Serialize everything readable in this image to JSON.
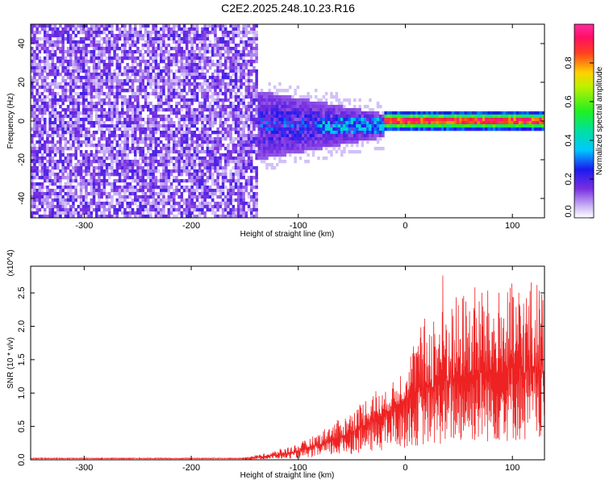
{
  "title": "C2E2.2025.248.10.23.R16",
  "chart_data": [
    {
      "type": "heatmap",
      "xlabel": "Height of straight line (km)",
      "ylabel": "Frequency (Hz)",
      "xlim": [
        -350,
        130
      ],
      "ylim": [
        -50,
        50
      ],
      "xticks": [
        "-300",
        "-200",
        "-100",
        "0",
        "100"
      ],
      "xtick_values": [
        -300,
        -200,
        -100,
        0,
        100
      ],
      "yticks": [
        "-40",
        "-20",
        "0",
        "20",
        "40"
      ],
      "ytick_values": [
        -40,
        -20,
        0,
        20,
        40
      ],
      "colorbar_label": "Normalized spectral amplitude",
      "colorbar_ticks": [
        "0.0",
        "0.2",
        "0.4",
        "0.6",
        "0.8"
      ],
      "colorbar_tick_values": [
        0.0,
        0.2,
        0.4,
        0.6,
        0.8
      ],
      "colorbar_range": [
        0,
        1
      ],
      "description_regions": [
        {
          "x_range": [
            -350,
            -140
          ],
          "freq_range": [
            -50,
            50
          ],
          "amplitude": "low, noise (violet)"
        },
        {
          "x_range": [
            -140,
            -20
          ],
          "freq_range": [
            -15,
            10
          ],
          "amplitude": "0.1-0.4 (blue/cyan/green)"
        },
        {
          "x_range": [
            -20,
            130
          ],
          "freq_range": [
            -2,
            4
          ],
          "amplitude": "0.5-1.0 narrow band near 1 Hz"
        }
      ]
    },
    {
      "type": "line",
      "xlabel": "Height of straight line (km)",
      "ylabel": "SNR (10 * v/v)",
      "y_scale_label": "(x10^4)",
      "xlim": [
        -350,
        130
      ],
      "ylim": [
        0,
        2.9
      ],
      "xticks": [
        "-300",
        "-200",
        "-100",
        "0",
        "100"
      ],
      "xtick_values": [
        -300,
        -200,
        -100,
        0,
        100
      ],
      "yticks": [
        "0.0",
        "0.5",
        "1.0",
        "1.5",
        "2.0",
        "2.5"
      ],
      "ytick_values": [
        0.0,
        0.5,
        1.0,
        1.5,
        2.0,
        2.5
      ],
      "color": "#ee2222",
      "series": [
        {
          "name": "SNR",
          "x": [
            -350,
            -300,
            -250,
            -200,
            -150,
            -130,
            -110,
            -100,
            -90,
            -80,
            -70,
            -60,
            -50,
            -40,
            -30,
            -20,
            -10,
            0,
            10,
            20,
            30,
            35,
            40,
            50,
            60,
            70,
            80,
            90,
            100,
            110,
            120,
            130
          ],
          "y_mean": [
            0.02,
            0.02,
            0.02,
            0.02,
            0.02,
            0.05,
            0.09,
            0.12,
            0.17,
            0.22,
            0.28,
            0.33,
            0.42,
            0.5,
            0.58,
            0.68,
            0.78,
            0.9,
            1.0,
            1.05,
            1.1,
            1.12,
            1.15,
            1.2,
            1.25,
            1.25,
            1.28,
            1.3,
            1.32,
            1.3,
            1.3,
            1.3
          ],
          "y_peak": [
            0.03,
            0.03,
            0.03,
            0.03,
            0.04,
            0.1,
            0.2,
            0.25,
            0.32,
            0.42,
            0.55,
            0.62,
            0.75,
            0.9,
            1.1,
            1.0,
            1.2,
            1.5,
            1.9,
            2.2,
            2.4,
            2.88,
            2.4,
            2.5,
            2.6,
            2.7,
            2.5,
            2.6,
            2.65,
            2.7,
            2.75,
            2.6
          ]
        }
      ]
    }
  ]
}
